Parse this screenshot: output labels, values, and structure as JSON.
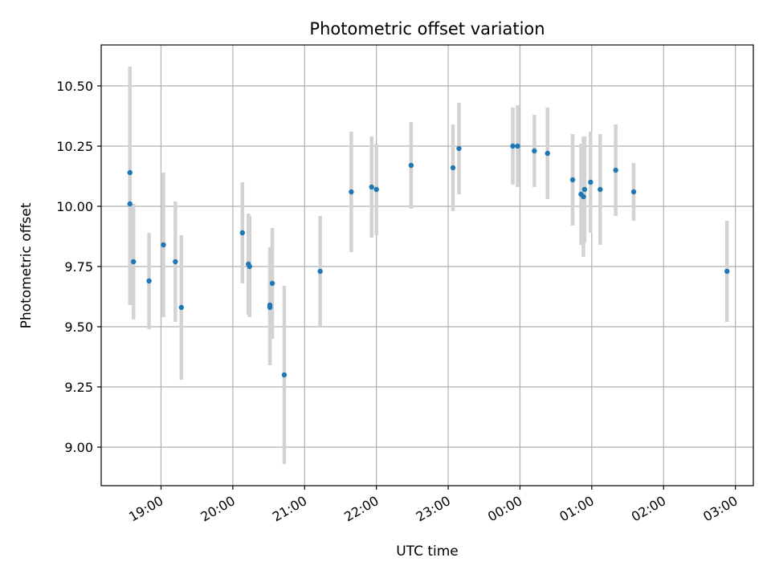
{
  "chart_data": {
    "type": "scatter",
    "title": "Photometric offset variation",
    "xlabel": "UTC time",
    "ylabel": "Photometric offset",
    "x_axis_kind": "time",
    "x_range_hours": [
      "18:10",
      "03:15"
    ],
    "ylim": [
      8.84,
      10.67
    ],
    "grid": true,
    "x_ticks": [
      "19:00",
      "20:00",
      "21:00",
      "22:00",
      "23:00",
      "00:00",
      "01:00",
      "02:00",
      "03:00"
    ],
    "y_ticks": [
      "9.00",
      "9.25",
      "9.50",
      "9.75",
      "10.00",
      "10.25",
      "10.50"
    ],
    "y_tick_values": [
      9.0,
      9.25,
      9.5,
      9.75,
      10.0,
      10.25,
      10.5
    ],
    "colors": {
      "point": "#1f77b4",
      "errorbar": "#d3d3d3",
      "grid": "#b0b0b0"
    },
    "series": [
      {
        "points": [
          {
            "x": "18:34",
            "y": 10.14,
            "err": 0.44
          },
          {
            "x": "18:34",
            "y": 10.01,
            "err": 0.42
          },
          {
            "x": "18:37",
            "y": 9.77,
            "err": 0.24
          },
          {
            "x": "18:50",
            "y": 9.69,
            "err": 0.2
          },
          {
            "x": "19:02",
            "y": 9.84,
            "err": 0.3
          },
          {
            "x": "19:12",
            "y": 9.77,
            "err": 0.25
          },
          {
            "x": "19:17",
            "y": 9.58,
            "err": 0.3
          },
          {
            "x": "20:08",
            "y": 9.89,
            "err": 0.21
          },
          {
            "x": "20:13",
            "y": 9.76,
            "err": 0.21
          },
          {
            "x": "20:14",
            "y": 9.75,
            "err": 0.21
          },
          {
            "x": "20:31",
            "y": 9.59,
            "err": 0.24
          },
          {
            "x": "20:31",
            "y": 9.58,
            "err": 0.24
          },
          {
            "x": "20:33",
            "y": 9.68,
            "err": 0.23
          },
          {
            "x": "20:43",
            "y": 9.3,
            "err": 0.37
          },
          {
            "x": "21:13",
            "y": 9.73,
            "err": 0.23
          },
          {
            "x": "21:39",
            "y": 10.06,
            "err": 0.25
          },
          {
            "x": "21:56",
            "y": 10.08,
            "err": 0.21
          },
          {
            "x": "22:00",
            "y": 10.07,
            "err": 0.19
          },
          {
            "x": "22:29",
            "y": 10.17,
            "err": 0.18
          },
          {
            "x": "23:04",
            "y": 10.16,
            "err": 0.18
          },
          {
            "x": "23:09",
            "y": 10.24,
            "err": 0.19
          },
          {
            "x": "23:54",
            "y": 10.25,
            "err": 0.16
          },
          {
            "x": "23:58",
            "y": 10.25,
            "err": 0.17
          },
          {
            "x": "00:12",
            "y": 10.23,
            "err": 0.15
          },
          {
            "x": "00:23",
            "y": 10.22,
            "err": 0.19
          },
          {
            "x": "00:44",
            "y": 10.11,
            "err": 0.19
          },
          {
            "x": "00:51",
            "y": 10.05,
            "err": 0.21
          },
          {
            "x": "00:53",
            "y": 10.04,
            "err": 0.25
          },
          {
            "x": "00:54",
            "y": 10.07,
            "err": 0.22
          },
          {
            "x": "00:59",
            "y": 10.1,
            "err": 0.21
          },
          {
            "x": "01:07",
            "y": 10.07,
            "err": 0.23
          },
          {
            "x": "01:20",
            "y": 10.15,
            "err": 0.19
          },
          {
            "x": "01:35",
            "y": 10.06,
            "err": 0.12
          },
          {
            "x": "02:53",
            "y": 9.73,
            "err": 0.21
          }
        ]
      }
    ]
  }
}
